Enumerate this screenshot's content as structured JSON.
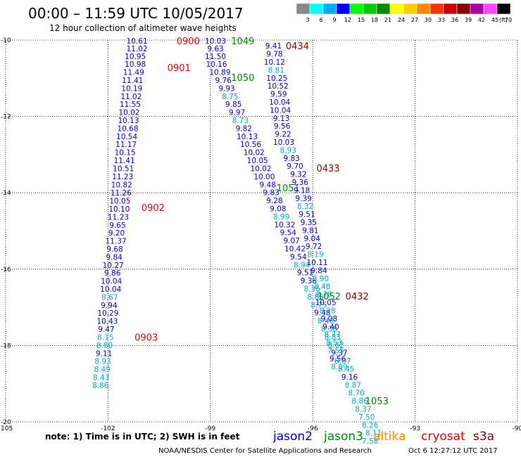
{
  "header": {
    "title": "00:00 – 11:59 UTC 10/05/2017",
    "subtitle": "12 hour collection of altimeter wave heights"
  },
  "legend": {
    "unit": "(ft)",
    "bins": [
      {
        "label": "3",
        "color": "#888888"
      },
      {
        "label": "6",
        "color": "#00ffff"
      },
      {
        "label": "9",
        "color": "#00aaff"
      },
      {
        "label": "12",
        "color": "#0000ff"
      },
      {
        "label": "15",
        "color": "#00ff00"
      },
      {
        "label": "18",
        "color": "#00cc00"
      },
      {
        "label": "21",
        "color": "#008800"
      },
      {
        "label": "24",
        "color": "#ffff00"
      },
      {
        "label": "27",
        "color": "#ffcc00"
      },
      {
        "label": "30",
        "color": "#ff8800"
      },
      {
        "label": "33",
        "color": "#ff3300"
      },
      {
        "label": "36",
        "color": "#cc0000"
      },
      {
        "label": "39",
        "color": "#880000"
      },
      {
        "label": "42",
        "color": "#aa00aa"
      },
      {
        "label": "45",
        "color": "#ff44ff"
      },
      {
        "label": "70",
        "color": "#000000"
      }
    ]
  },
  "axes": {
    "lon_ticks": [
      "-105",
      "-102",
      "-99",
      "-96",
      "-93",
      "-90"
    ],
    "lat_ticks": [
      "-10",
      "-12",
      "-14",
      "-16",
      "-18",
      "-20"
    ]
  },
  "footer": {
    "note": "note:  1) Time is in UTC;  2) SWH is in feet",
    "satellites": [
      {
        "name": "jason2",
        "color": "#0000cc"
      },
      {
        "name": "jason3",
        "color": "#008800"
      },
      {
        "name": "altika",
        "color": "#ff8800"
      },
      {
        "name": "cryosat",
        "color": "#ee0000"
      },
      {
        "name": "s3a",
        "color": "#880000"
      }
    ],
    "credit": "NOAA/NESDIS Center for Satellite Applications and Research",
    "timestamp": "Oct  6 12:27:12 UTC 2017"
  },
  "colors": {
    "jason2": "#0000cc",
    "jason3": "#008800",
    "cryosat": "#ee0000",
    "s3a": "#880000",
    "light": "#00aacc"
  },
  "tracks": [
    {
      "sat": "cryosat",
      "time_labels": [
        {
          "text": "0900",
          "lon": -99.65,
          "lat": -10.02
        },
        {
          "text": "0901",
          "lon": -99.92,
          "lat": -10.72
        },
        {
          "text": "0902",
          "lon": -100.68,
          "lat": -14.38
        },
        {
          "text": "0903",
          "lon": -100.88,
          "lat": -17.78
        }
      ],
      "swh": [
        {
          "v": "10.61",
          "lon": -101.15,
          "lat": -10.02,
          "c": "d"
        },
        {
          "v": "11.02",
          "lon": -101.15,
          "lat": -10.22,
          "c": "d"
        },
        {
          "v": "10.95",
          "lon": -101.2,
          "lat": -10.42,
          "c": "d"
        },
        {
          "v": "10.98",
          "lon": -101.2,
          "lat": -10.63,
          "c": "d"
        },
        {
          "v": "11.49",
          "lon": -101.25,
          "lat": -10.84,
          "c": "d"
        },
        {
          "v": "11.41",
          "lon": -101.28,
          "lat": -11.05,
          "c": "d"
        },
        {
          "v": "10.19",
          "lon": -101.3,
          "lat": -11.26,
          "c": "d"
        },
        {
          "v": "11.02",
          "lon": -101.32,
          "lat": -11.47,
          "c": "d"
        },
        {
          "v": "11.55",
          "lon": -101.35,
          "lat": -11.68,
          "c": "d"
        },
        {
          "v": "10.02",
          "lon": -101.38,
          "lat": -11.89,
          "c": "d"
        },
        {
          "v": "10.13",
          "lon": -101.4,
          "lat": -12.1,
          "c": "d"
        },
        {
          "v": "10.68",
          "lon": -101.42,
          "lat": -12.31,
          "c": "d"
        },
        {
          "v": "10.54",
          "lon": -101.45,
          "lat": -12.52,
          "c": "d"
        },
        {
          "v": "11.17",
          "lon": -101.47,
          "lat": -12.73,
          "c": "d"
        },
        {
          "v": "10.15",
          "lon": -101.5,
          "lat": -12.94,
          "c": "d"
        },
        {
          "v": "11.41",
          "lon": -101.52,
          "lat": -13.15,
          "c": "d"
        },
        {
          "v": "10.51",
          "lon": -101.55,
          "lat": -13.36,
          "c": "d"
        },
        {
          "v": "11.23",
          "lon": -101.57,
          "lat": -13.57,
          "c": "d"
        },
        {
          "v": "10.82",
          "lon": -101.6,
          "lat": -13.78,
          "c": "d"
        },
        {
          "v": "11.26",
          "lon": -101.62,
          "lat": -14.0,
          "c": "d"
        },
        {
          "v": "10.05",
          "lon": -101.65,
          "lat": -14.21,
          "c": "d"
        },
        {
          "v": "10.10",
          "lon": -101.67,
          "lat": -14.42,
          "c": "d"
        },
        {
          "v": "11.23",
          "lon": -101.7,
          "lat": -14.63,
          "c": "d"
        },
        {
          "v": "9.65",
          "lon": -101.72,
          "lat": -14.84,
          "c": "d"
        },
        {
          "v": "9.20",
          "lon": -101.75,
          "lat": -15.05,
          "c": "d"
        },
        {
          "v": "11.37",
          "lon": -101.77,
          "lat": -15.26,
          "c": "d"
        },
        {
          "v": "9.68",
          "lon": -101.8,
          "lat": -15.47,
          "c": "d"
        },
        {
          "v": "9.84",
          "lon": -101.82,
          "lat": -15.68,
          "c": "d"
        },
        {
          "v": "10.27",
          "lon": -101.85,
          "lat": -15.89,
          "c": "d"
        },
        {
          "v": "9.86",
          "lon": -101.87,
          "lat": -16.1,
          "c": "d"
        },
        {
          "v": "10.04",
          "lon": -101.9,
          "lat": -16.31,
          "c": "d"
        },
        {
          "v": "10.04",
          "lon": -101.92,
          "lat": -16.52,
          "c": "d"
        },
        {
          "v": "8.67",
          "lon": -101.95,
          "lat": -16.73,
          "c": "l"
        },
        {
          "v": "9.94",
          "lon": -101.97,
          "lat": -16.94,
          "c": "d"
        },
        {
          "v": "10.29",
          "lon": -102.0,
          "lat": -17.15,
          "c": "d"
        },
        {
          "v": "10.43",
          "lon": -102.02,
          "lat": -17.36,
          "c": "d"
        },
        {
          "v": "9.47",
          "lon": -102.05,
          "lat": -17.57,
          "c": "d"
        },
        {
          "v": "8.15",
          "lon": -102.07,
          "lat": -17.78,
          "c": "l"
        },
        {
          "v": "8.80",
          "lon": -102.1,
          "lat": -17.99,
          "c": "l"
        },
        {
          "v": "9.11",
          "lon": -102.12,
          "lat": -18.2,
          "c": "d"
        },
        {
          "v": "8.93",
          "lon": -102.15,
          "lat": -18.41,
          "c": "l"
        },
        {
          "v": "8.49",
          "lon": -102.17,
          "lat": -18.62,
          "c": "l"
        },
        {
          "v": "8.43",
          "lon": -102.2,
          "lat": -18.83,
          "c": "l"
        },
        {
          "v": "8.86",
          "lon": -102.22,
          "lat": -19.04,
          "c": "l"
        }
      ]
    },
    {
      "sat": "jason3",
      "time_labels": [
        {
          "text": "1049",
          "lon": -98.05,
          "lat": -10.02
        },
        {
          "text": "1050",
          "lon": -98.05,
          "lat": -10.98
        },
        {
          "text": "1051",
          "lon": -96.72,
          "lat": -13.87
        },
        {
          "text": "1052",
          "lon": -95.52,
          "lat": -16.7
        },
        {
          "text": "1053",
          "lon": -94.12,
          "lat": -19.45
        }
      ],
      "swh": [
        {
          "v": "10.03",
          "lon": -98.85,
          "lat": -10.02,
          "c": "d"
        },
        {
          "v": "9.63",
          "lon": -98.85,
          "lat": -10.22,
          "c": "d"
        },
        {
          "v": "11.50",
          "lon": -98.85,
          "lat": -10.42,
          "c": "d"
        },
        {
          "v": "10.16",
          "lon": -98.82,
          "lat": -10.63,
          "c": "d"
        },
        {
          "v": "10.89",
          "lon": -98.72,
          "lat": -10.84,
          "c": "d"
        },
        {
          "v": "9.76",
          "lon": -98.62,
          "lat": -11.05,
          "c": "d"
        },
        {
          "v": "9.93",
          "lon": -98.52,
          "lat": -11.26,
          "c": "d"
        },
        {
          "v": "8.75",
          "lon": -98.42,
          "lat": -11.47,
          "c": "l"
        },
        {
          "v": "9.85",
          "lon": -98.32,
          "lat": -11.68,
          "c": "d"
        },
        {
          "v": "9.97",
          "lon": -98.22,
          "lat": -11.89,
          "c": "d"
        },
        {
          "v": "8.73",
          "lon": -98.12,
          "lat": -12.1,
          "c": "l"
        },
        {
          "v": "9.82",
          "lon": -98.02,
          "lat": -12.31,
          "c": "d"
        },
        {
          "v": "10.13",
          "lon": -97.92,
          "lat": -12.52,
          "c": "d"
        },
        {
          "v": "10.56",
          "lon": -97.82,
          "lat": -12.73,
          "c": "d"
        },
        {
          "v": "10.02",
          "lon": -97.72,
          "lat": -12.94,
          "c": "d"
        },
        {
          "v": "10.05",
          "lon": -97.62,
          "lat": -13.15,
          "c": "d"
        },
        {
          "v": "10.02",
          "lon": -97.52,
          "lat": -13.36,
          "c": "d"
        },
        {
          "v": "10.00",
          "lon": -97.42,
          "lat": -13.57,
          "c": "d"
        },
        {
          "v": "9.48",
          "lon": -97.32,
          "lat": -13.78,
          "c": "d"
        },
        {
          "v": "9.83",
          "lon": -97.22,
          "lat": -13.99,
          "c": "d"
        },
        {
          "v": "9.28",
          "lon": -97.12,
          "lat": -14.2,
          "c": "d"
        },
        {
          "v": "9.08",
          "lon": -97.02,
          "lat": -14.41,
          "c": "d"
        },
        {
          "v": "8.99",
          "lon": -96.92,
          "lat": -14.62,
          "c": "l"
        },
        {
          "v": "10.32",
          "lon": -96.82,
          "lat": -14.83,
          "c": "d"
        },
        {
          "v": "9.54",
          "lon": -96.72,
          "lat": -15.04,
          "c": "d"
        },
        {
          "v": "9.07",
          "lon": -96.62,
          "lat": -15.25,
          "c": "d"
        },
        {
          "v": "10.42",
          "lon": -96.52,
          "lat": -15.46,
          "c": "d"
        },
        {
          "v": "9.54",
          "lon": -96.42,
          "lat": -15.67,
          "c": "d"
        },
        {
          "v": "8.94",
          "lon": -96.32,
          "lat": -15.88,
          "c": "l"
        },
        {
          "v": "9.51",
          "lon": -96.22,
          "lat": -16.09,
          "c": "d"
        },
        {
          "v": "9.36",
          "lon": -96.12,
          "lat": -16.3,
          "c": "d"
        },
        {
          "v": "8.36",
          "lon": -96.02,
          "lat": -16.51,
          "c": "l"
        },
        {
          "v": "8.86",
          "lon": -95.92,
          "lat": -16.72,
          "c": "l"
        },
        {
          "v": "8.75",
          "lon": -95.82,
          "lat": -16.93,
          "c": "l"
        },
        {
          "v": "9.48",
          "lon": -95.72,
          "lat": -17.14,
          "c": "d"
        },
        {
          "v": "8.46",
          "lon": -95.62,
          "lat": -17.35,
          "c": "l"
        },
        {
          "v": "8.38",
          "lon": -95.52,
          "lat": -17.56,
          "c": "l"
        },
        {
          "v": "8.83",
          "lon": -95.42,
          "lat": -17.77,
          "c": "l"
        },
        {
          "v": "8.62",
          "lon": -95.32,
          "lat": -17.98,
          "c": "l"
        },
        {
          "v": "9.37",
          "lon": -95.22,
          "lat": -18.19,
          "c": "d"
        },
        {
          "v": "8.07",
          "lon": -95.12,
          "lat": -18.4,
          "c": "l"
        },
        {
          "v": "8.45",
          "lon": -95.02,
          "lat": -18.61,
          "c": "l"
        },
        {
          "v": "9.16",
          "lon": -94.92,
          "lat": -18.82,
          "c": "d"
        },
        {
          "v": "8.87",
          "lon": -94.82,
          "lat": -19.03,
          "c": "l"
        },
        {
          "v": "8.70",
          "lon": -94.72,
          "lat": -19.24,
          "c": "l"
        },
        {
          "v": "8.86",
          "lon": -94.62,
          "lat": -19.45,
          "c": "l"
        },
        {
          "v": "8.37",
          "lon": -94.52,
          "lat": -19.66,
          "c": "l"
        },
        {
          "v": "7.50",
          "lon": -94.42,
          "lat": -19.87,
          "c": "l"
        },
        {
          "v": "8.26",
          "lon": -94.32,
          "lat": -20.08,
          "c": "l"
        },
        {
          "v": "8.11",
          "lon": -94.22,
          "lat": -20.29,
          "c": "l"
        },
        {
          "v": "7.58",
          "lon": -94.32,
          "lat": -20.5,
          "c": "l"
        }
      ]
    },
    {
      "sat": "s3a",
      "time_labels": [
        {
          "text": "0434",
          "lon": -96.45,
          "lat": -10.15
        },
        {
          "text": "0433",
          "lon": -95.55,
          "lat": -13.35
        },
        {
          "text": "0432",
          "lon": -94.7,
          "lat": -16.7
        }
      ],
      "swh": [
        {
          "v": "9.41",
          "lon": -97.15,
          "lat": -10.15,
          "c": "d"
        },
        {
          "v": "9.78",
          "lon": -97.12,
          "lat": -10.36,
          "c": "d"
        },
        {
          "v": "10.12",
          "lon": -97.12,
          "lat": -10.57,
          "c": "d"
        },
        {
          "v": "8.81",
          "lon": -97.07,
          "lat": -10.78,
          "c": "l"
        },
        {
          "v": "10.25",
          "lon": -97.05,
          "lat": -10.99,
          "c": "d"
        },
        {
          "v": "10.52",
          "lon": -97.02,
          "lat": -11.2,
          "c": "d"
        },
        {
          "v": "9.59",
          "lon": -97.0,
          "lat": -11.41,
          "c": "d"
        },
        {
          "v": "10.04",
          "lon": -96.97,
          "lat": -11.62,
          "c": "d"
        },
        {
          "v": "10.04",
          "lon": -96.95,
          "lat": -11.83,
          "c": "d"
        },
        {
          "v": "9.13",
          "lon": -96.92,
          "lat": -12.04,
          "c": "d"
        },
        {
          "v": "9.56",
          "lon": -96.9,
          "lat": -12.25,
          "c": "d"
        },
        {
          "v": "9.22",
          "lon": -96.87,
          "lat": -12.46,
          "c": "d"
        },
        {
          "v": "10.03",
          "lon": -96.85,
          "lat": -12.67,
          "c": "d"
        },
        {
          "v": "8.93",
          "lon": -96.72,
          "lat": -12.88,
          "c": "l"
        },
        {
          "v": "9.83",
          "lon": -96.62,
          "lat": -13.09,
          "c": "d"
        },
        {
          "v": "9.70",
          "lon": -96.52,
          "lat": -13.3,
          "c": "d"
        },
        {
          "v": "9.32",
          "lon": -96.42,
          "lat": -13.51,
          "c": "d"
        },
        {
          "v": "9.36",
          "lon": -96.37,
          "lat": -13.72,
          "c": "d"
        },
        {
          "v": "9.18",
          "lon": -96.32,
          "lat": -13.93,
          "c": "d"
        },
        {
          "v": "9.39",
          "lon": -96.27,
          "lat": -14.14,
          "c": "d"
        },
        {
          "v": "8.32",
          "lon": -96.22,
          "lat": -14.35,
          "c": "l"
        },
        {
          "v": "9.51",
          "lon": -96.17,
          "lat": -14.56,
          "c": "d"
        },
        {
          "v": "9.35",
          "lon": -96.12,
          "lat": -14.77,
          "c": "d"
        },
        {
          "v": "9.81",
          "lon": -96.07,
          "lat": -14.98,
          "c": "d"
        },
        {
          "v": "9.04",
          "lon": -96.02,
          "lat": -15.19,
          "c": "d"
        },
        {
          "v": "9.72",
          "lon": -95.97,
          "lat": -15.4,
          "c": "d"
        },
        {
          "v": "8.19",
          "lon": -95.92,
          "lat": -15.61,
          "c": "l"
        },
        {
          "v": "10.11",
          "lon": -95.87,
          "lat": -15.82,
          "c": "d"
        },
        {
          "v": "9.84",
          "lon": -95.82,
          "lat": -16.03,
          "c": "d"
        },
        {
          "v": "8.90",
          "lon": -95.77,
          "lat": -16.24,
          "c": "l"
        },
        {
          "v": "8.48",
          "lon": -95.72,
          "lat": -16.45,
          "c": "l"
        },
        {
          "v": "8.78",
          "lon": -95.67,
          "lat": -16.66,
          "c": "l"
        },
        {
          "v": "10.05",
          "lon": -95.62,
          "lat": -16.87,
          "c": "d"
        },
        {
          "v": "8.28",
          "lon": -95.57,
          "lat": -17.08,
          "c": "l"
        },
        {
          "v": "9.08",
          "lon": -95.52,
          "lat": -17.29,
          "c": "d"
        },
        {
          "v": "9.40",
          "lon": -95.47,
          "lat": -17.5,
          "c": "d"
        },
        {
          "v": "8.77",
          "lon": -95.42,
          "lat": -17.71,
          "c": "l"
        },
        {
          "v": "8.53",
          "lon": -95.37,
          "lat": -17.92,
          "c": "l"
        },
        {
          "v": "7.55",
          "lon": -95.32,
          "lat": -18.13,
          "c": "l"
        },
        {
          "v": "9.56",
          "lon": -95.27,
          "lat": -18.34,
          "c": "d"
        },
        {
          "v": "8.09",
          "lon": -95.22,
          "lat": -18.55,
          "c": "l"
        }
      ]
    }
  ]
}
